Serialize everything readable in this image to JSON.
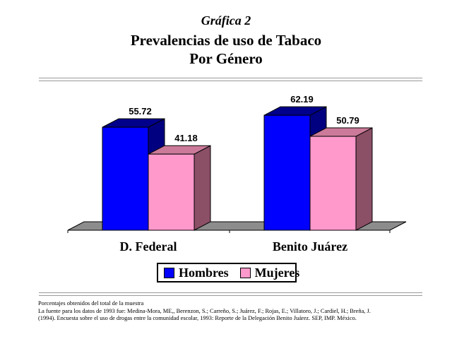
{
  "kicker": "Gráfica 2",
  "title_line1": "Prevalencias de uso de Tabaco",
  "title_line2": "Por Género",
  "chart_data": {
    "type": "bar",
    "categories": [
      "D. Federal",
      "Benito Juárez"
    ],
    "series": [
      {
        "name": "Hombres",
        "values": [
          55.72,
          62.19
        ],
        "color": "#0000ff"
      },
      {
        "name": "Mujeres",
        "values": [
          41.18,
          50.79
        ],
        "color": "#ff99cc"
      }
    ],
    "data_labels": [
      "55.72",
      "41.18",
      "62.19",
      "50.79"
    ],
    "ylim": [
      0,
      70
    ],
    "grid": false,
    "legend_placement": "bottom",
    "style": "3d-bars"
  },
  "footnotes": [
    "Porcentajes obtenidos del total de la muestra",
    "La fuente para los datos de 1993 fue: Medina-Mora, ME,, Berenzon, S.; Carreño, S.; Juárez, F.; Rojas, E.; Villatoro, J.; Cardiel, H.; Breña, J.",
    "(1994). Encuesta sobre el uso de drogas entre la comunidad escolar, 1993: Reporte de la Delegación Benito Juárez. SEP, IMP. México."
  ]
}
